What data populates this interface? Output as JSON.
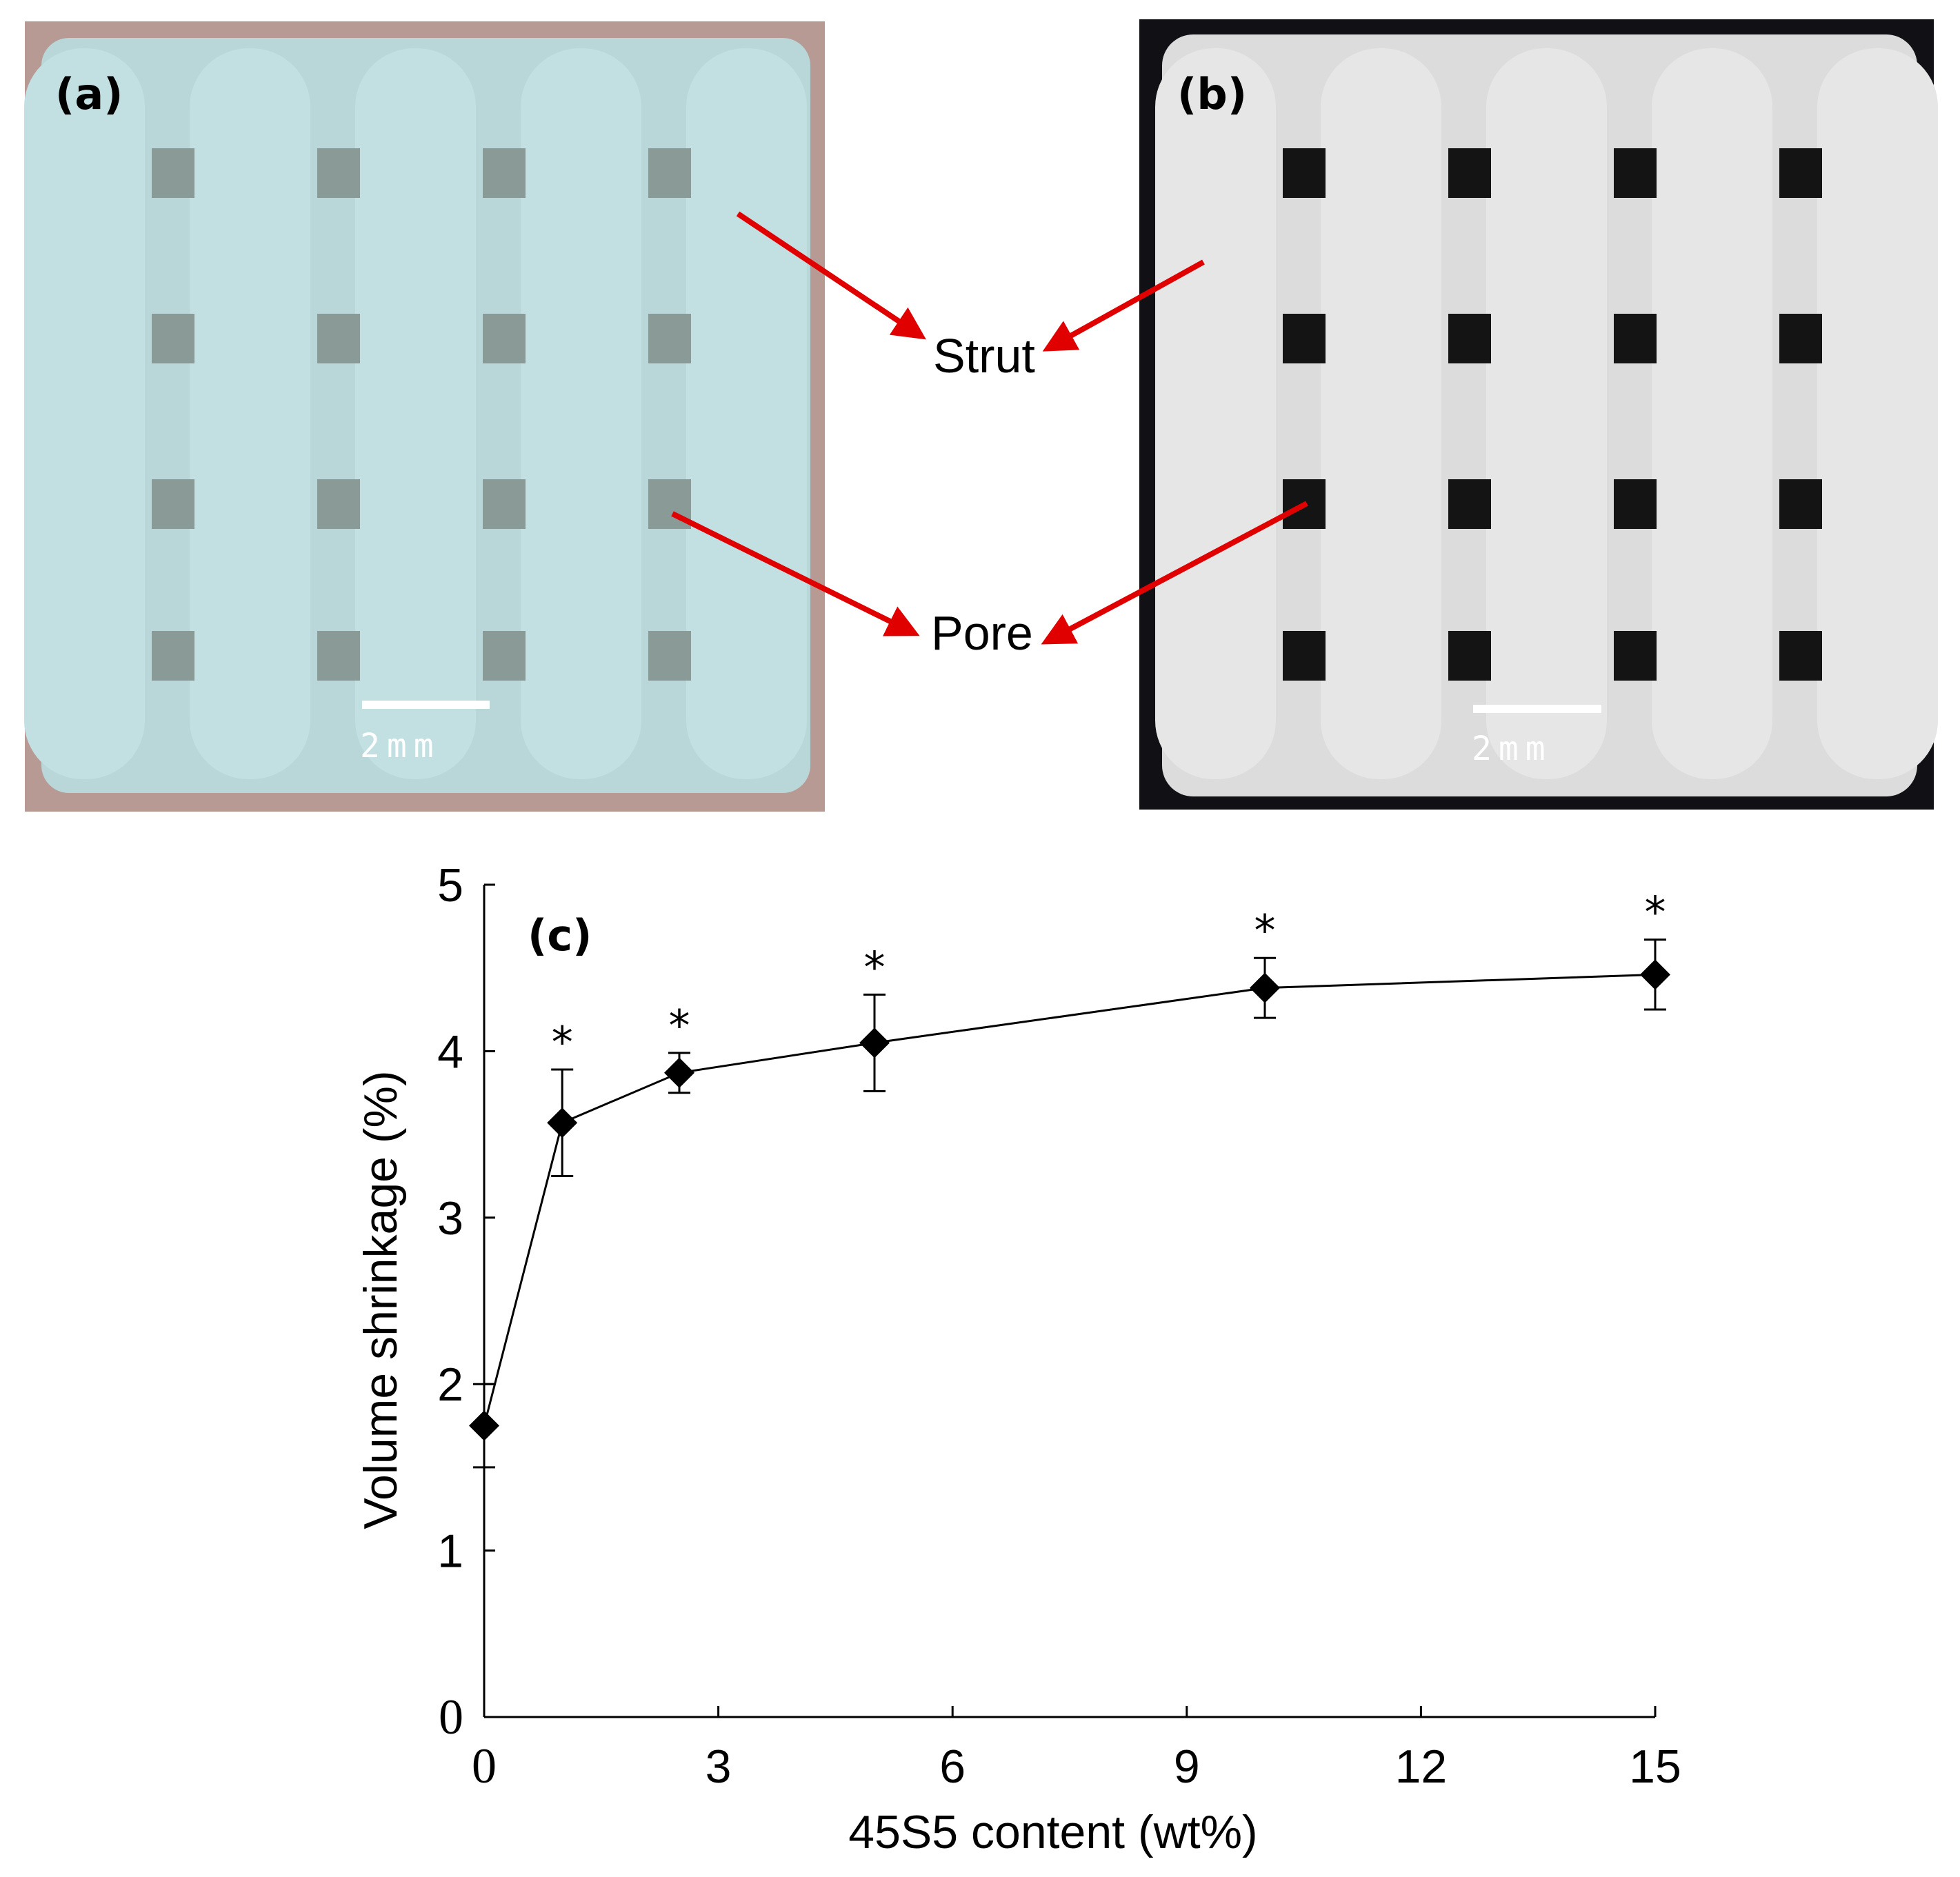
{
  "panels": {
    "a": {
      "label": "(a)",
      "scale_bar": "2mm",
      "colors": {
        "background": "#b79a93",
        "scaffold": "#b9d6d8",
        "pore": "#8a9a97"
      }
    },
    "b": {
      "label": "(b)",
      "scale_bar": "2mm",
      "colors": {
        "background": "#111015",
        "scaffold": "#dcdcdc",
        "pore": "#141414"
      }
    }
  },
  "annotations": {
    "strut": "Strut",
    "pore": "Pore",
    "arrow_color": "#e00000"
  },
  "chart_panel_label": "(c)",
  "chart_data": {
    "type": "line",
    "marker": "diamond",
    "x": [
      0,
      1,
      2.5,
      5,
      10,
      15
    ],
    "series": [
      {
        "values": [
          1.75,
          3.57,
          3.87,
          4.05,
          4.38,
          4.46
        ],
        "error": [
          0.25,
          0.32,
          0.12,
          0.29,
          0.18,
          0.21
        ],
        "significance": [
          "",
          "*",
          "*",
          "*",
          "*",
          "*"
        ]
      }
    ],
    "xlabel": "45S5 content (wt%)",
    "ylabel": "Volume shrinkage (%)",
    "xlim": [
      0,
      15
    ],
    "ylim": [
      0,
      5
    ],
    "xticks": [
      "0",
      "3",
      "6",
      "9",
      "12",
      "15"
    ],
    "yticks": [
      "0",
      "1",
      "2",
      "3",
      "4",
      "5"
    ],
    "grid": false,
    "color": "#000000"
  }
}
